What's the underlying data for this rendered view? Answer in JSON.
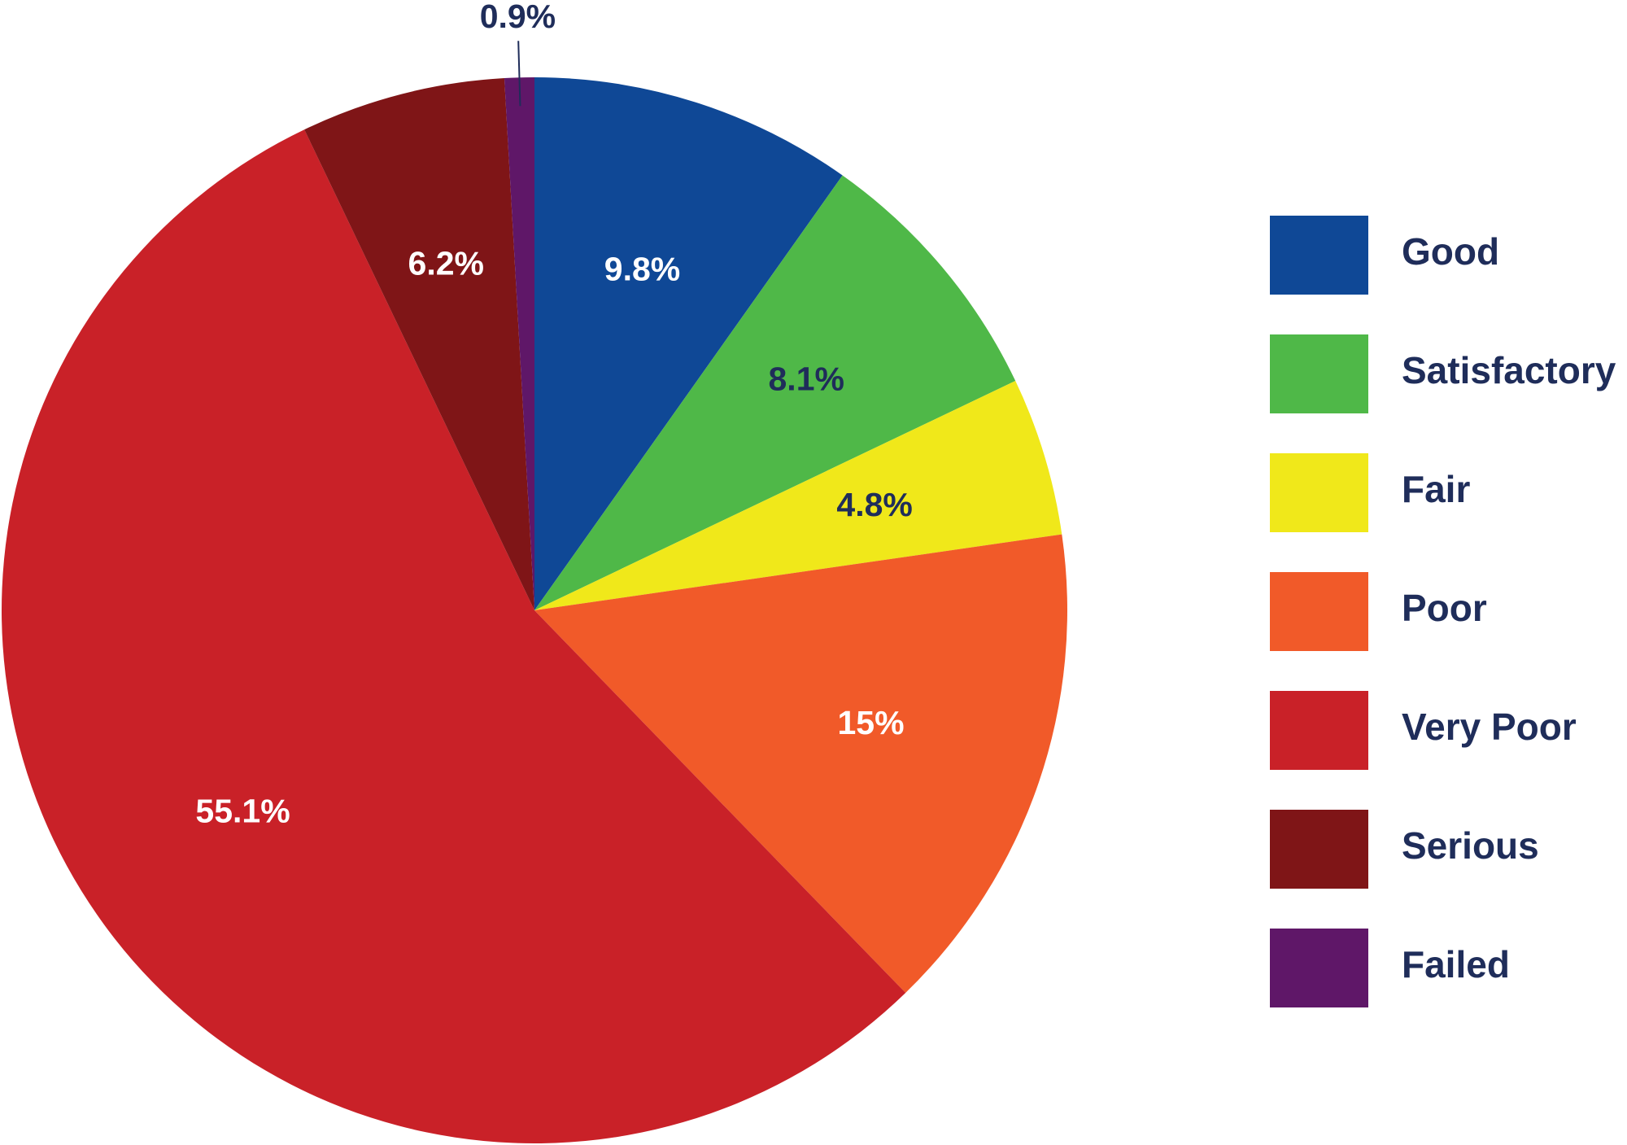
{
  "chart_data": {
    "type": "pie",
    "categories": [
      "Good",
      "Satisfactory",
      "Fair",
      "Poor",
      "Very Poor",
      "Serious",
      "Failed"
    ],
    "values": [
      9.8,
      8.1,
      4.8,
      15,
      55.1,
      6.2,
      0.9
    ],
    "value_labels": [
      "9.8%",
      "8.1%",
      "4.8%",
      "15%",
      "55.1%",
      "6.2%",
      "0.9%"
    ],
    "colors": [
      "#0f4896",
      "#4fb848",
      "#f0e81a",
      "#f15a29",
      "#c92128",
      "#7f1517",
      "#5f1768"
    ],
    "label_colors": [
      "#ffffff",
      "#1f2d5a",
      "#1f2d5a",
      "#ffffff",
      "#ffffff",
      "#ffffff",
      "#1f2d5a"
    ],
    "legend": "right"
  }
}
